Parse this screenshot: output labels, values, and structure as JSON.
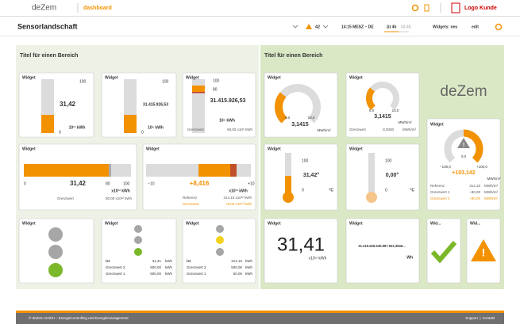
{
  "header": {
    "logo": "deZem",
    "section": "dashboard",
    "customer_logo": "Logo Kunde"
  },
  "toolbar": {
    "title": "Sensorlandschaft",
    "alerts": "42",
    "time": "14:15 MESZ – DE",
    "interval": "Δt 4h",
    "countdown": "03:45",
    "widgets": "Widgets: neu",
    "edit": "edit"
  },
  "panels": [
    {
      "title": "Titel für einen Bereich"
    },
    {
      "title": "Titel für einen Bereich",
      "logo": "deZem"
    }
  ],
  "widgets": [
    {
      "title": "Widget",
      "max": "100",
      "value": "31,42",
      "min": "0",
      "unit": "10¹² kWh"
    },
    {
      "title": "Widget",
      "max": "100",
      "value": "31.415.926,53",
      "min": "0",
      "unit": "10⁶ kWh"
    },
    {
      "title": "Widget",
      "max": "100",
      "limit_mark": "80",
      "value": "31.415.926,53",
      "min": "0",
      "unit": "10⁶ kWh",
      "limit_label": "Grenzwert",
      "limit": "80,00 x10⁶ kWh"
    },
    {
      "title": "Widget",
      "min": "0",
      "value": "31,42",
      "limit_mark": "80",
      "max": "100",
      "unit": "x10¹² kWh",
      "limit_label": "Grenzwert",
      "limit": "80,00 x10¹² kWh"
    },
    {
      "title": "Widget",
      "min": "−10",
      "value": "+8,416",
      "max": "+10",
      "unit": "x10¹² kWh",
      "reference_label": "Referenz",
      "reference": "314,15 x10¹² kWh",
      "limit_label": "Grenzwert",
      "limit": "+8,00 x10¹² kWh"
    },
    {
      "title": "Widget"
    },
    {
      "title": "Widget",
      "rows": [
        [
          "ist",
          "31,41",
          "kWh"
        ],
        [
          "Grenzwert 2",
          "500,00",
          "kWh"
        ],
        [
          "Grenzwert 1",
          "500,00",
          "kWh"
        ]
      ]
    },
    {
      "title": "Widget",
      "rows": [
        [
          "ist",
          "314,16",
          "kWh"
        ],
        [
          "Grenzwert 2",
          "500,00",
          "kWh"
        ],
        [
          "Grenzwert 1",
          "50,00",
          "kWh"
        ]
      ]
    },
    {
      "title": "Widget",
      "min": "0,0",
      "max": "10,0",
      "value": "3,1415",
      "unit": "MWh/m²"
    },
    {
      "title": "Widget",
      "min": "0,0",
      "max": "10,0",
      "value": "3,1415",
      "unit": "MWh/m²",
      "limit_label": "Grenzwert",
      "limit": "8,0000",
      "limit_unit": "MWh/m²"
    },
    {
      "title": "Widget",
      "mid": "0,0",
      "min": "−100,0",
      "max": "+100,0",
      "value": "+103,142",
      "unit": "MWh/m²",
      "rows": [
        [
          "Referenz",
          "314,15",
          "MWh/m²"
        ],
        [
          "Grenzwert 1",
          "−80,00",
          "MWh/m²"
        ],
        [
          "Grenzwert 2",
          "+80,00",
          "MWh/m²"
        ]
      ]
    },
    {
      "title": "Widget",
      "max": "100",
      "value": "31,42°",
      "min": "0",
      "unit": "°C"
    },
    {
      "title": "Widget",
      "max": "100",
      "value": "0,00°",
      "min": "0",
      "unit": "°C"
    },
    {
      "title": "Widget",
      "value": "31,41",
      "unit": "x10¹² kWh"
    },
    {
      "title": "Widget",
      "value": "31.415.926.535.897.932,3846...",
      "unit": "Wh"
    },
    {
      "title": "Wid..."
    },
    {
      "title": "Wid..."
    }
  ],
  "footer": {
    "copyright": "© deZem GmbH – Energiecontrolling und Energiemanagement",
    "links": [
      "Support",
      "Kontakt"
    ]
  }
}
